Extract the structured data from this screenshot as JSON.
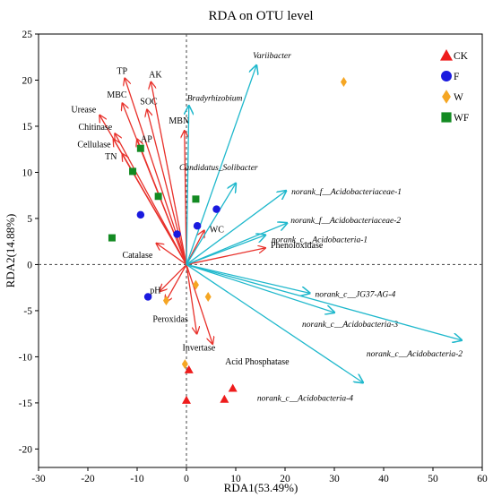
{
  "chart_data": {
    "type": "scatter",
    "title": "RDA on OTU level",
    "xlabel": "RDA1(53.49%)",
    "ylabel": "RDA2(14.88%)",
    "xlim": [
      -30,
      60
    ],
    "ylim": [
      -22,
      25
    ],
    "xticks": [
      -30,
      -20,
      -10,
      0,
      10,
      20,
      30,
      40,
      50,
      60
    ],
    "yticks": [
      -20,
      -15,
      -10,
      -5,
      0,
      5,
      10,
      15,
      20,
      25
    ],
    "reference_lines": "dashed lines at x = 0 and y = 0",
    "legend_position": "top-right",
    "series": [
      {
        "name": "CK",
        "marker": "triangle",
        "color": "#ee1c1c",
        "points": [
          [
            0,
            -14.7
          ],
          [
            0.5,
            -11.4
          ],
          [
            7.7,
            -14.6
          ],
          [
            9.4,
            -13.4
          ]
        ]
      },
      {
        "name": "F",
        "marker": "circle",
        "color": "#1a1adf",
        "points": [
          [
            -9.3,
            5.4
          ],
          [
            -1.9,
            3.3
          ],
          [
            2.2,
            4.2
          ],
          [
            6.1,
            6.0
          ],
          [
            -7.8,
            -3.5
          ]
        ]
      },
      {
        "name": "W",
        "marker": "diamond",
        "color": "#f5a623",
        "points": [
          [
            31.9,
            19.8
          ],
          [
            -4.1,
            -3.9
          ],
          [
            1.9,
            -2.2
          ],
          [
            4.4,
            -3.5
          ],
          [
            -0.3,
            -10.8
          ]
        ]
      },
      {
        "name": "WF",
        "marker": "square",
        "color": "#138a22",
        "points": [
          [
            -9.3,
            12.6
          ],
          [
            -10.9,
            10.1
          ],
          [
            -5.7,
            7.4
          ],
          [
            1.9,
            7.1
          ],
          [
            -15.1,
            2.9
          ]
        ]
      }
    ],
    "environment_arrows": {
      "color": "#e8302a",
      "vectors": [
        {
          "label": "TP",
          "x": -12.5,
          "y": 20.2
        },
        {
          "label": "AK",
          "x": -7.2,
          "y": 19.8
        },
        {
          "label": "MBC",
          "x": -13.0,
          "y": 17.5
        },
        {
          "label": "SOC",
          "x": -8.0,
          "y": 16.8
        },
        {
          "label": "Urease",
          "x": -17.6,
          "y": 16.2
        },
        {
          "label": "Chitinase",
          "x": -14.5,
          "y": 14.2
        },
        {
          "label": "Cellulase",
          "x": -14.8,
          "y": 13.6
        },
        {
          "label": "AP",
          "x": -10.0,
          "y": 13.6
        },
        {
          "label": "TN",
          "x": -13.0,
          "y": 12.0
        },
        {
          "label": "MBN",
          "x": -0.4,
          "y": 14.5
        },
        {
          "label": "WC",
          "x": 3.6,
          "y": 3.7
        },
        {
          "label": "Catalase",
          "x": -6.1,
          "y": 2.3
        },
        {
          "label": "pH",
          "x": -5.4,
          "y": -2.9
        },
        {
          "label": "Peroxidas",
          "x": -4.3,
          "y": -4.1
        },
        {
          "label": "Invertase",
          "x": 2.1,
          "y": -7.5
        },
        {
          "label": "Acid Phosphatase",
          "x": 5.3,
          "y": -8.6
        },
        {
          "label": "Phenoloxidase",
          "x": 16.0,
          "y": 1.8
        }
      ]
    },
    "otu_arrows": {
      "color": "#1fb8cc",
      "vectors": [
        {
          "label": "Variibacter",
          "x": 14.2,
          "y": 21.6
        },
        {
          "label": "Bradyrhizobium",
          "x": 0.5,
          "y": 17.2
        },
        {
          "label": "Candidatus_Solibacter",
          "x": 10.0,
          "y": 8.8
        },
        {
          "label": "norank_f__Acidobacteriaceae-1",
          "x": 20.2,
          "y": 8.0
        },
        {
          "label": "norank_f__Acidobacteriaceae-2",
          "x": 20.4,
          "y": 4.5
        },
        {
          "label": "norank_c__Acidobacteria-1",
          "x": 16.0,
          "y": 3.2
        },
        {
          "label": "norank_c__JG37-AG-4",
          "x": 25.0,
          "y": -3.1
        },
        {
          "label": "norank_c__Acidobacteria-3",
          "x": 30.0,
          "y": -5.2
        },
        {
          "label": "norank_c__Acidobacteria-2",
          "x": 55.8,
          "y": -8.2
        },
        {
          "label": "norank_c__Acidobacteria-4",
          "x": 35.8,
          "y": -12.8
        }
      ]
    }
  }
}
